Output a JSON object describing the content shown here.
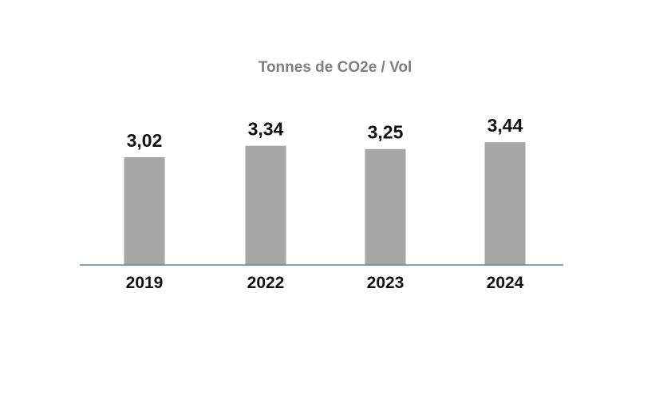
{
  "chart_data": {
    "type": "bar",
    "title": "Tonnes de CO2e / Vol",
    "categories": [
      "2019",
      "2022",
      "2023",
      "2024"
    ],
    "values": [
      3.02,
      3.34,
      3.25,
      3.44
    ],
    "value_labels": [
      "3,02",
      "3,34",
      "3,25",
      "3,44"
    ],
    "xlabel": "",
    "ylabel": "",
    "grid": false,
    "legend": "none",
    "colors": {
      "bar": "#a6a6a6",
      "axis": "#5b7fa6",
      "title": "#7f7f7f",
      "label": "#111111"
    }
  }
}
